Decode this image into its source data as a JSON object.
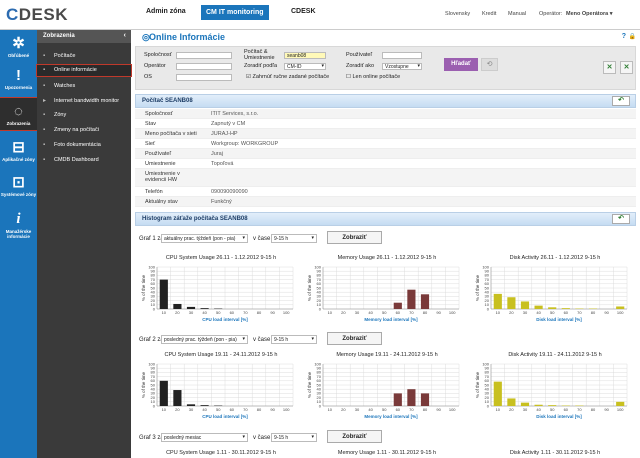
{
  "brand": {
    "logo_text": "CDESK",
    "logo_first": "C",
    "logo_rest": "DESK"
  },
  "topnav": [
    {
      "label": "Admin zóna"
    },
    {
      "label": "CM IT monitoring"
    },
    {
      "label": "CDESK"
    }
  ],
  "toplinks": {
    "language": "Slovensky",
    "credit": "Kredit",
    "manual": "Manual",
    "operator_label": "Operátor:",
    "operator_name": "Meno Operátora ▾"
  },
  "iconbar": [
    {
      "label": "Obľúbené",
      "glyph": "✲"
    },
    {
      "label": "Upozornenia",
      "glyph": "!"
    },
    {
      "label": "Zobrazenia",
      "glyph": "◌"
    },
    {
      "label": "Aplikačné zóny",
      "glyph": "⊟"
    },
    {
      "label": "Systémové zóny",
      "glyph": "⊡"
    },
    {
      "label": "Manažérske informácie",
      "glyph": "i"
    }
  ],
  "sidebar": {
    "title": "Zobrazenia",
    "items": [
      {
        "label": "Počítače",
        "icon": "computer-icon"
      },
      {
        "label": "Online informácie",
        "icon": "info-icon"
      },
      {
        "label": "Watches",
        "icon": "eye-icon"
      },
      {
        "label": "Internet bandwidth monitor",
        "icon": "arrow-icon"
      },
      {
        "label": "Zóny",
        "icon": "zone-icon"
      },
      {
        "label": "Zmeny na počítači",
        "icon": "changes-icon"
      },
      {
        "label": "Foto dokumentácia",
        "icon": "photo-icon"
      },
      {
        "label": "CMDB Dashboard",
        "icon": "dashboard-icon"
      }
    ]
  },
  "page": {
    "title": "Online Informácie",
    "help": "?"
  },
  "filters": {
    "spolocnost_label": "Spoločnosť",
    "operator_label": "Operátor",
    "os_label": "OS",
    "pc_label": "Počítač & Umiestnenie",
    "pc_value": "seanb08",
    "zoradit_podla_label": "Zoradiť podľa",
    "zoradit_podla_value": "CM-ID",
    "uzivatel_label": "Používateľ",
    "zoradit_ako_label": "Zoradiť ako",
    "zoradit_ako_value": "Vzostupne",
    "manual_label": "Zahrnúť ručne zadané počítače",
    "online_label": "Len online počítače",
    "search_button": "Hľadať"
  },
  "computer": {
    "header": "Počítač SEANB08",
    "rows": [
      {
        "label": "Spoločnosť",
        "value": "ITIT Services, s.r.o."
      },
      {
        "label": "Stav",
        "value": "Zapnutý v CM"
      },
      {
        "label": "Meno počítača v sieti",
        "value": "JURAJ-HP"
      },
      {
        "label": "Sieť",
        "value": "Workgroup: WORKGROUP"
      },
      {
        "label": "Používateľ",
        "value": "Juraj"
      },
      {
        "label": "Umiestnenie",
        "value": "Topoľová"
      },
      {
        "label": "Umiestnenie v evidencii HW",
        "value": ""
      },
      {
        "label": "Telefón",
        "value": "090090090090"
      },
      {
        "label": "Aktuálny stav",
        "value": "Funkčný"
      }
    ]
  },
  "histogram": {
    "header": "Histogram záťaže počítača SEANB08",
    "rows": [
      {
        "label": "Graf 1 za",
        "period": "aktuálny prac. týždeň (pon - pia)",
        "vcase": "v čase",
        "time": "9-15 h",
        "button": "Zobraziť",
        "charts": [
          {
            "title": "CPU System Usage 26.11 - 1.12.2012 9-15 h",
            "xlabel": "CPU load interval [%]"
          },
          {
            "title": "Memory Usage 26.11 - 1.12.2012 9-15 h",
            "xlabel": "Memory load interval [%]"
          },
          {
            "title": "Disk Activity 26.11 - 1.12.2012 9-15 h",
            "xlabel": "Disk load interval [%]"
          }
        ]
      },
      {
        "label": "Graf 2 za",
        "period": "posledný prac. týždeň (pon - pia)",
        "vcase": "v čase",
        "time": "9-15 h",
        "button": "Zobraziť",
        "charts": [
          {
            "title": "CPU System Usage 19.11 - 24.11.2012 9-15 h",
            "xlabel": "CPU load interval [%]"
          },
          {
            "title": "Memory Usage 19.11 - 24.11.2012 9-15 h",
            "xlabel": "Memory load interval [%]"
          },
          {
            "title": "Disk Activity 19.11 - 24.11.2012 9-15 h",
            "xlabel": "Disk load interval [%]"
          }
        ]
      },
      {
        "label": "Graf 3 za",
        "period": "posledný mesiac",
        "vcase": "v čase",
        "time": "9-15 h",
        "button": "Zobraziť",
        "charts": [
          {
            "title": "CPU System Usage 1.11 - 30.11.2012 9-15 h"
          },
          {
            "title": "Memory Usage 1.11 - 30.11.2012 9-15 h"
          },
          {
            "title": "Disk Activity 1.11 - 30.11.2012 9-15 h"
          }
        ]
      }
    ]
  },
  "chart_data": [
    {
      "type": "bar",
      "title": "CPU System Usage 26.11 - 1.12.2012 9-15 h",
      "xlabel": "CPU load interval [%]",
      "ylabel": "% of the time",
      "categories": [
        "10",
        "20",
        "30",
        "40",
        "50",
        "60",
        "70",
        "80",
        "90",
        "100"
      ],
      "values": [
        70,
        12,
        5,
        2,
        1,
        0,
        0,
        0,
        0,
        0
      ],
      "ylim": [
        0,
        100
      ],
      "color": "#222222"
    },
    {
      "type": "bar",
      "title": "Memory Usage 26.11 - 1.12.2012 9-15 h",
      "xlabel": "Memory load interval [%]",
      "ylabel": "% of the time",
      "categories": [
        "10",
        "20",
        "30",
        "40",
        "50",
        "60",
        "70",
        "80",
        "90",
        "100"
      ],
      "values": [
        0,
        0,
        0,
        0,
        0,
        15,
        46,
        35,
        0,
        0
      ],
      "ylim": [
        0,
        100
      ],
      "color": "#7a3a3a"
    },
    {
      "type": "bar",
      "title": "Disk Activity 26.11 - 1.12.2012 9-15 h",
      "xlabel": "Disk load interval [%]",
      "ylabel": "% of the time",
      "categories": [
        "10",
        "20",
        "30",
        "40",
        "50",
        "60",
        "70",
        "80",
        "90",
        "100"
      ],
      "values": [
        36,
        28,
        18,
        8,
        4,
        2,
        1,
        1,
        0,
        6
      ],
      "ylim": [
        0,
        100
      ],
      "color": "#c8c020"
    },
    {
      "type": "bar",
      "title": "CPU System Usage 19.11 - 24.11.2012 9-15 h",
      "xlabel": "CPU load interval [%]",
      "ylabel": "% of the time",
      "categories": [
        "10",
        "20",
        "30",
        "40",
        "50",
        "60",
        "70",
        "80",
        "90",
        "100"
      ],
      "values": [
        60,
        38,
        4,
        2,
        1,
        0,
        0,
        0,
        0,
        0
      ],
      "ylim": [
        0,
        100
      ],
      "color": "#222222"
    },
    {
      "type": "bar",
      "title": "Memory Usage 19.11 - 24.11.2012 9-15 h",
      "xlabel": "Memory load interval [%]",
      "ylabel": "% of the time",
      "categories": [
        "10",
        "20",
        "30",
        "40",
        "50",
        "60",
        "70",
        "80",
        "90",
        "100"
      ],
      "values": [
        0,
        0,
        0,
        0,
        0,
        30,
        40,
        30,
        0,
        0
      ],
      "ylim": [
        0,
        100
      ],
      "color": "#7a3a3a"
    },
    {
      "type": "bar",
      "title": "Disk Activity 19.11 - 24.11.2012 9-15 h",
      "xlabel": "Disk load interval [%]",
      "ylabel": "% of the time",
      "categories": [
        "10",
        "20",
        "30",
        "40",
        "50",
        "60",
        "70",
        "80",
        "90",
        "100"
      ],
      "values": [
        58,
        18,
        8,
        3,
        2,
        1,
        1,
        0,
        0,
        10
      ],
      "ylim": [
        0,
        100
      ],
      "color": "#c8c020"
    }
  ],
  "colors": {
    "primary": "#1b75bb",
    "sidebar": "#3a3a3a",
    "search": "#9b5fb0",
    "highlight": "#c0392b"
  }
}
